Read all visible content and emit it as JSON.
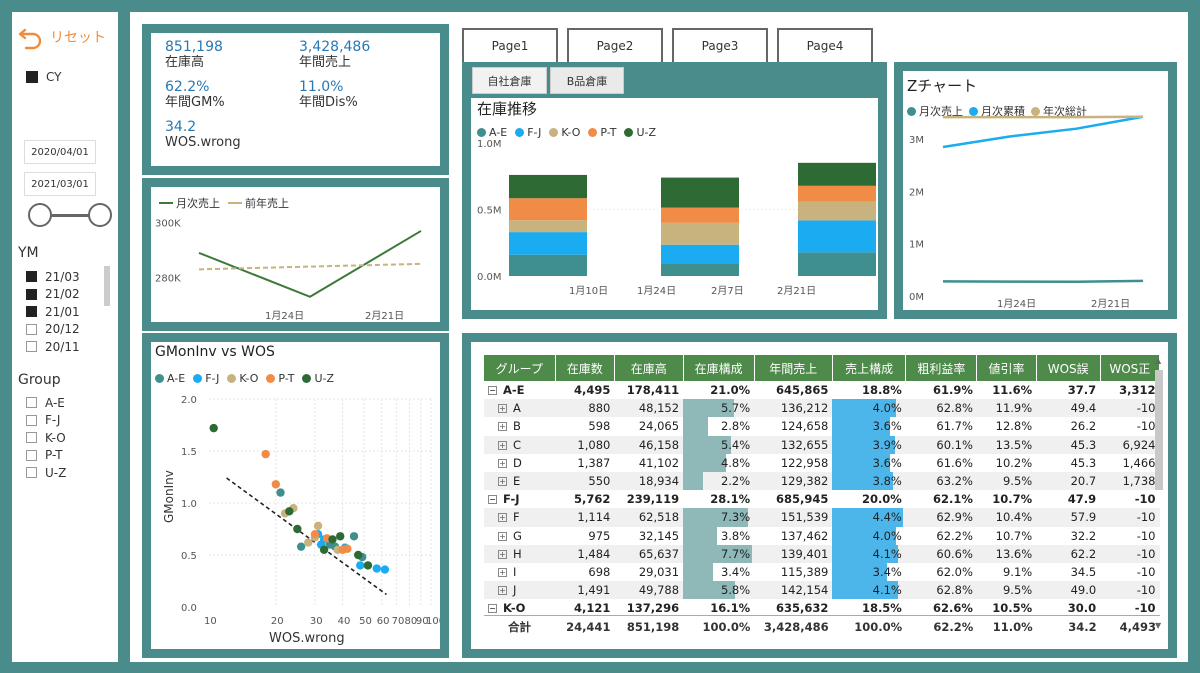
{
  "sidebar": {
    "reset_label": "リセット",
    "cy_label": "CY",
    "date_start": "2020/04/01",
    "date_end": "2021/03/01",
    "ym_title": "YM",
    "ym_items": [
      {
        "label": "21/03",
        "checked": true
      },
      {
        "label": "21/02",
        "checked": true
      },
      {
        "label": "21/01",
        "checked": true
      },
      {
        "label": "20/12",
        "checked": false
      },
      {
        "label": "20/11",
        "checked": false
      }
    ],
    "group_title": "Group",
    "group_items": [
      "A-E",
      "F-J",
      "K-O",
      "P-T",
      "U-Z"
    ]
  },
  "kpi": [
    {
      "value": "851,198",
      "label": "在庫高"
    },
    {
      "value": "3,428,486",
      "label": "年間売上"
    },
    {
      "value": "62.2%",
      "label": "年間GM%"
    },
    {
      "value": "11.0%",
      "label": "年間Dis%"
    },
    {
      "value": "34.2",
      "label": "WOS.wrong"
    }
  ],
  "pages": [
    "Page1",
    "Page2",
    "Page3",
    "Page4"
  ],
  "tabs": [
    "自社倉庫",
    "B品倉庫"
  ],
  "colors": {
    "A-E": "#3f8f8f",
    "F-J": "#1aabf0",
    "K-O": "#c8b27e",
    "P-T": "#f08c46",
    "U-Z": "#2e6b34",
    "monthly": "#3f8f8f",
    "cumulative": "#1aabf0",
    "annual": "#c8b27e",
    "line_cur": "#3d7a3a",
    "line_prev": "#c8b27e",
    "header": "#4e8a4a"
  },
  "line_chart": {
    "legend": [
      "月次売上",
      "前年売上"
    ],
    "yticks": [
      "300K",
      "280K"
    ],
    "xticks": [
      "1月24日",
      "2月21日"
    ]
  },
  "stack_chart": {
    "title": "在庫推移",
    "legend": [
      "A-E",
      "F-J",
      "K-O",
      "P-T",
      "U-Z"
    ],
    "yticks": [
      "1.0M",
      "0.5M",
      "0.0M"
    ],
    "xticks": [
      "1月10日",
      "1月24日",
      "2月7日",
      "2月21日"
    ]
  },
  "z_chart": {
    "title": "Zチャート",
    "legend": [
      "月次売上",
      "月次累積",
      "年次総計"
    ],
    "yticks": [
      "3M",
      "2M",
      "1M",
      "0M"
    ],
    "xticks": [
      "1月24日",
      "2月21日"
    ]
  },
  "scatter": {
    "title": "GMonInv vs WOS",
    "legend": [
      "A-E",
      "F-J",
      "K-O",
      "P-T",
      "U-Z"
    ],
    "ylabel": "GMonInv",
    "xlabel": "WOS.wrong",
    "yticks": [
      "2.0",
      "1.5",
      "1.0",
      "0.5",
      "0.0"
    ],
    "xticks": [
      "10",
      "20",
      "30",
      "40",
      "50",
      "60",
      "70",
      "80",
      "90",
      "100"
    ]
  },
  "chart_data": [
    {
      "type": "line",
      "x": [
        "2021-01",
        "2021-02",
        "2021-03"
      ],
      "xticks": [
        "1月24日",
        "2月21日"
      ],
      "series": [
        {
          "name": "月次売上",
          "values": [
            289000,
            273000,
            297000
          ]
        },
        {
          "name": "前年売上",
          "values": [
            283000,
            284000,
            285000
          ]
        }
      ],
      "ylim": [
        270000,
        305000
      ],
      "yticks": [
        "300K",
        "280K"
      ]
    },
    {
      "type": "bar",
      "title": "在庫推移",
      "categories": [
        "2021-01",
        "2021-02",
        "2021-03"
      ],
      "xticks": [
        "1月10日",
        "1月24日",
        "2月7日",
        "2月21日"
      ],
      "series": [
        {
          "name": "A-E",
          "values": [
            160000,
            95000,
            178000
          ]
        },
        {
          "name": "F-J",
          "values": [
            170000,
            140000,
            240000
          ]
        },
        {
          "name": "K-O",
          "values": [
            90000,
            165000,
            140000
          ]
        },
        {
          "name": "P-T",
          "values": [
            165000,
            115000,
            120000
          ]
        },
        {
          "name": "U-Z",
          "values": [
            175000,
            225000,
            173000
          ]
        }
      ],
      "ylim": [
        0,
        1000000
      ],
      "yticks": [
        "1.0M",
        "0.5M",
        "0.0M"
      ]
    },
    {
      "type": "line",
      "title": "Zチャート",
      "x": [
        "2020-12",
        "2021-01",
        "2021-02",
        "2021-03"
      ],
      "xticks": [
        "1月24日",
        "2月21日"
      ],
      "series": [
        {
          "name": "月次売上",
          "values": [
            280000,
            275000,
            273000,
            290000
          ]
        },
        {
          "name": "月次累積",
          "values": [
            2850000,
            3050000,
            3200000,
            3428486
          ]
        },
        {
          "name": "年次総計",
          "values": [
            3420000,
            3420000,
            3420000,
            3428486
          ]
        }
      ],
      "ylim": [
        0,
        3500000
      ],
      "yticks": [
        "3M",
        "2M",
        "1M",
        "0M"
      ]
    },
    {
      "type": "scatter",
      "title": "GMonInv vs WOS",
      "xlabel": "WOS.wrong",
      "ylabel": "GMonInv",
      "xscale": "log",
      "xlim": [
        10,
        100
      ],
      "ylim": [
        0,
        2
      ],
      "series": [
        {
          "name": "A-E",
          "points": [
            [
              21,
              1.1
            ],
            [
              26,
              0.58
            ],
            [
              35,
              0.6
            ],
            [
              45,
              0.68
            ],
            [
              49,
              0.48
            ],
            [
              37,
              0.58
            ]
          ]
        },
        {
          "name": "F-J",
          "points": [
            [
              31,
              0.7
            ],
            [
              32,
              0.6
            ],
            [
              33,
              0.65
            ],
            [
              48,
              0.4
            ],
            [
              57,
              0.37
            ],
            [
              62,
              0.36
            ],
            [
              41,
              0.57
            ]
          ]
        },
        {
          "name": "K-O",
          "points": [
            [
              22,
              0.9
            ],
            [
              24,
              0.95
            ],
            [
              30,
              0.67
            ],
            [
              31,
              0.78
            ],
            [
              38,
              0.55
            ],
            [
              28,
              0.62
            ]
          ]
        },
        {
          "name": "P-T",
          "points": [
            [
              18,
              1.47
            ],
            [
              20,
              1.18
            ],
            [
              30,
              0.7
            ],
            [
              40,
              0.55
            ],
            [
              42,
              0.56
            ],
            [
              34,
              0.66
            ]
          ]
        },
        {
          "name": "U-Z",
          "points": [
            [
              10.5,
              1.72
            ],
            [
              23,
              0.92
            ],
            [
              25,
              0.75
            ],
            [
              33,
              0.55
            ],
            [
              39,
              0.68
            ],
            [
              47,
              0.5
            ],
            [
              52,
              0.4
            ],
            [
              36,
              0.65
            ]
          ]
        }
      ],
      "trendline": [
        [
          12,
          1.24
        ],
        [
          63,
          0.12
        ]
      ]
    }
  ],
  "table": {
    "headers": [
      "グループ",
      "在庫数",
      "在庫高",
      "在庫構成",
      "年間売上",
      "売上構成",
      "粗利益率",
      "値引率",
      "WOS誤",
      "WOS正"
    ],
    "rows": [
      {
        "group": true,
        "name": "A-E",
        "cells": [
          "4,495",
          "178,411",
          "21.0%",
          "645,865",
          "18.8%",
          "61.9%",
          "11.6%",
          "37.7",
          "3,312"
        ]
      },
      {
        "group": false,
        "name": "A",
        "cells": [
          "880",
          "48,152",
          "5.7%",
          "136,212",
          "4.0%",
          "62.8%",
          "11.9%",
          "49.4",
          "-10"
        ],
        "inv": 5.7,
        "sales": 4.0
      },
      {
        "group": false,
        "name": "B",
        "cells": [
          "598",
          "24,065",
          "2.8%",
          "124,658",
          "3.6%",
          "61.7%",
          "12.8%",
          "26.2",
          "-10"
        ],
        "inv": 2.8,
        "sales": 3.6
      },
      {
        "group": false,
        "name": "C",
        "cells": [
          "1,080",
          "46,158",
          "5.4%",
          "132,655",
          "3.9%",
          "60.1%",
          "13.5%",
          "45.3",
          "6,924"
        ],
        "inv": 5.4,
        "sales": 3.9
      },
      {
        "group": false,
        "name": "D",
        "cells": [
          "1,387",
          "41,102",
          "4.8%",
          "122,958",
          "3.6%",
          "61.6%",
          "10.2%",
          "45.3",
          "1,466"
        ],
        "inv": 4.8,
        "sales": 3.6
      },
      {
        "group": false,
        "name": "E",
        "cells": [
          "550",
          "18,934",
          "2.2%",
          "129,382",
          "3.8%",
          "63.2%",
          "9.5%",
          "20.7",
          "1,738"
        ],
        "inv": 2.2,
        "sales": 3.8
      },
      {
        "group": true,
        "name": "F-J",
        "cells": [
          "5,762",
          "239,119",
          "28.1%",
          "685,945",
          "20.0%",
          "62.1%",
          "10.7%",
          "47.9",
          "-10"
        ]
      },
      {
        "group": false,
        "name": "F",
        "cells": [
          "1,114",
          "62,518",
          "7.3%",
          "151,539",
          "4.4%",
          "62.9%",
          "10.4%",
          "57.9",
          "-10"
        ],
        "inv": 7.3,
        "sales": 4.4
      },
      {
        "group": false,
        "name": "G",
        "cells": [
          "975",
          "32,145",
          "3.8%",
          "137,462",
          "4.0%",
          "62.2%",
          "10.7%",
          "32.2",
          "-10"
        ],
        "inv": 3.8,
        "sales": 4.0
      },
      {
        "group": false,
        "name": "H",
        "cells": [
          "1,484",
          "65,637",
          "7.7%",
          "139,401",
          "4.1%",
          "60.6%",
          "13.6%",
          "62.2",
          "-10"
        ],
        "inv": 7.7,
        "sales": 4.1
      },
      {
        "group": false,
        "name": "I",
        "cells": [
          "698",
          "29,031",
          "3.4%",
          "115,389",
          "3.4%",
          "62.0%",
          "9.1%",
          "34.5",
          "-10"
        ],
        "inv": 3.4,
        "sales": 3.4
      },
      {
        "group": false,
        "name": "J",
        "cells": [
          "1,491",
          "49,788",
          "5.8%",
          "142,154",
          "4.1%",
          "62.8%",
          "9.5%",
          "49.0",
          "-10"
        ],
        "inv": 5.8,
        "sales": 4.1
      },
      {
        "group": true,
        "name": "K-O",
        "cells": [
          "4,121",
          "137,296",
          "16.1%",
          "635,632",
          "18.5%",
          "62.6%",
          "10.5%",
          "30.0",
          "-10"
        ]
      }
    ],
    "total": {
      "name": "合計",
      "cells": [
        "24,441",
        "851,198",
        "100.0%",
        "3,428,486",
        "100.0%",
        "62.2%",
        "11.0%",
        "34.2",
        "4,493"
      ]
    }
  }
}
